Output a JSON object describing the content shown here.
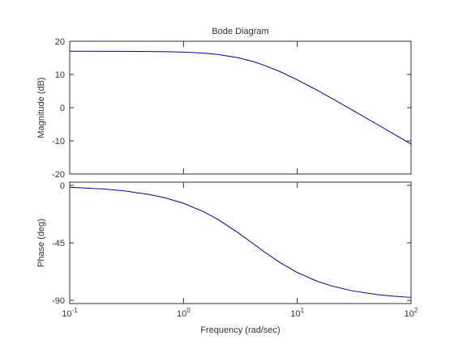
{
  "chart_data": [
    {
      "type": "line",
      "title": "Bode Diagram",
      "y_label": "Magnitude (dB)",
      "x": [
        0.1,
        0.2,
        0.3,
        0.5,
        0.7,
        1,
        1.5,
        2,
        3,
        4,
        5,
        7,
        10,
        15,
        20,
        30,
        50,
        70,
        100
      ],
      "series": [
        {
          "color": "#0000a0",
          "values": [
            17.0,
            16.99,
            16.98,
            16.93,
            16.87,
            16.74,
            16.43,
            16.03,
            15.06,
            13.99,
            12.91,
            10.91,
            8.4,
            5.22,
            2.85,
            -0.58,
            -4.97,
            -7.87,
            -10.97
          ]
        }
      ],
      "xlim": [
        0.1,
        100
      ],
      "x_log": true,
      "ylim": [
        -20,
        20
      ],
      "yticks": [
        -20,
        -10,
        0,
        10,
        20
      ],
      "xticks": [
        0.1,
        1,
        10,
        100
      ]
    },
    {
      "type": "line",
      "y_label": "Phase (deg)",
      "x_label": "Frequency  (rad/sec)",
      "x": [
        0.1,
        0.2,
        0.3,
        0.5,
        0.7,
        1,
        1.5,
        2,
        3,
        4,
        5,
        7,
        10,
        15,
        20,
        30,
        50,
        70,
        100
      ],
      "series": [
        {
          "color": "#0000a0",
          "values": [
            -1.43,
            -2.86,
            -4.29,
            -7.13,
            -9.93,
            -14.04,
            -20.56,
            -26.57,
            -36.87,
            -45,
            -51.34,
            -60.26,
            -68.2,
            -75.07,
            -78.69,
            -82.41,
            -85.43,
            -86.73,
            -87.71
          ]
        }
      ],
      "xlim": [
        0.1,
        100
      ],
      "x_log": true,
      "ylim": [
        -92.5,
        2.5
      ],
      "yticks": [
        -90,
        -45,
        0
      ],
      "xticks": [
        {
          "value": 0.1,
          "label": "10",
          "exponent": "-1"
        },
        {
          "value": 1,
          "label": "10",
          "exponent": "0"
        },
        {
          "value": 10,
          "label": "10",
          "exponent": "1"
        },
        {
          "value": 100,
          "label": "10",
          "exponent": "2"
        }
      ]
    }
  ]
}
